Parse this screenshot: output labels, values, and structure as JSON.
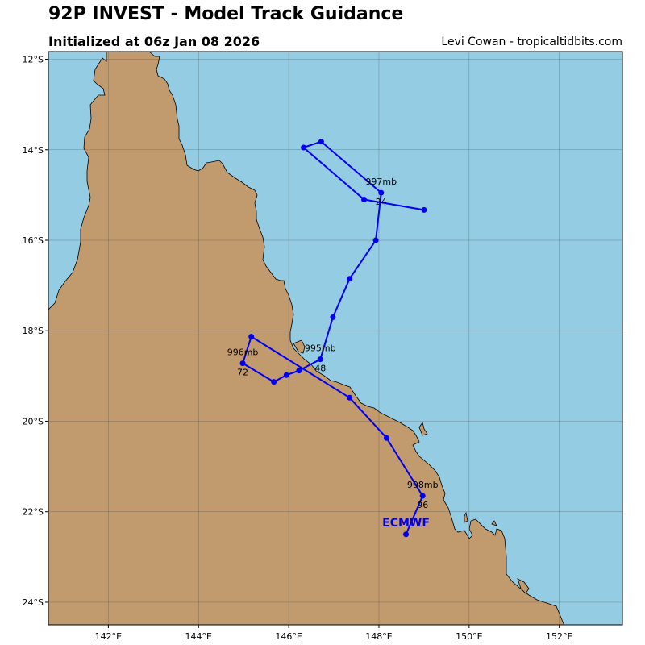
{
  "header": {
    "title": "92P INVEST - Model Track Guidance",
    "init": "Initialized at 06z Jan 08 2026",
    "credit": "Levi Cowan - tropicaltidbits.com"
  },
  "colors": {
    "ocean": "#94cde3",
    "land": "#c19a6e",
    "track": "#0000ee",
    "grid": "#555555"
  },
  "map": {
    "lon_range": [
      140.67,
      153.4
    ],
    "lat_range": [
      -24.5,
      -11.83
    ],
    "lon_ticks": [
      142,
      144,
      146,
      148,
      150,
      152
    ],
    "lon_tick_labels": [
      "142°E",
      "144°E",
      "146°E",
      "148°E",
      "150°E",
      "152°E"
    ],
    "lat_ticks": [
      -12,
      -14,
      -16,
      -18,
      -20,
      -22,
      -24
    ],
    "lat_tick_labels": [
      "12°S",
      "14°S",
      "16°S",
      "18°S",
      "20°S",
      "22°S",
      "24°S"
    ],
    "grid": true
  },
  "track": {
    "model": "ECMWF",
    "points": [
      {
        "lon": 148.6,
        "lat": -22.5
      },
      {
        "lon": 148.97,
        "lat": -21.65
      },
      {
        "lon": 148.17,
        "lat": -20.37
      },
      {
        "lon": 147.35,
        "lat": -19.48
      },
      {
        "lon": 145.17,
        "lat": -18.13
      },
      {
        "lon": 144.98,
        "lat": -18.72
      },
      {
        "lon": 145.67,
        "lat": -19.13
      },
      {
        "lon": 145.95,
        "lat": -18.98
      },
      {
        "lon": 146.23,
        "lat": -18.88
      },
      {
        "lon": 146.7,
        "lat": -18.63
      },
      {
        "lon": 146.98,
        "lat": -17.7
      },
      {
        "lon": 147.35,
        "lat": -16.85
      },
      {
        "lon": 147.93,
        "lat": -16.0
      },
      {
        "lon": 148.05,
        "lat": -14.95
      },
      {
        "lon": 146.72,
        "lat": -13.82
      },
      {
        "lon": 146.33,
        "lat": -13.95
      },
      {
        "lon": 147.67,
        "lat": -15.1
      },
      {
        "lon": 149.0,
        "lat": -15.33
      }
    ],
    "annotations": [
      {
        "lon": 148.05,
        "lat": -14.95,
        "pressure": "997mb",
        "hour": "24"
      },
      {
        "lon": 146.7,
        "lat": -18.63,
        "pressure": "995mb",
        "hour": "48"
      },
      {
        "lon": 144.98,
        "lat": -18.72,
        "pressure": "996mb",
        "hour": "72"
      },
      {
        "lon": 148.97,
        "lat": -21.65,
        "pressure": "998mb",
        "hour": "96"
      }
    ]
  }
}
